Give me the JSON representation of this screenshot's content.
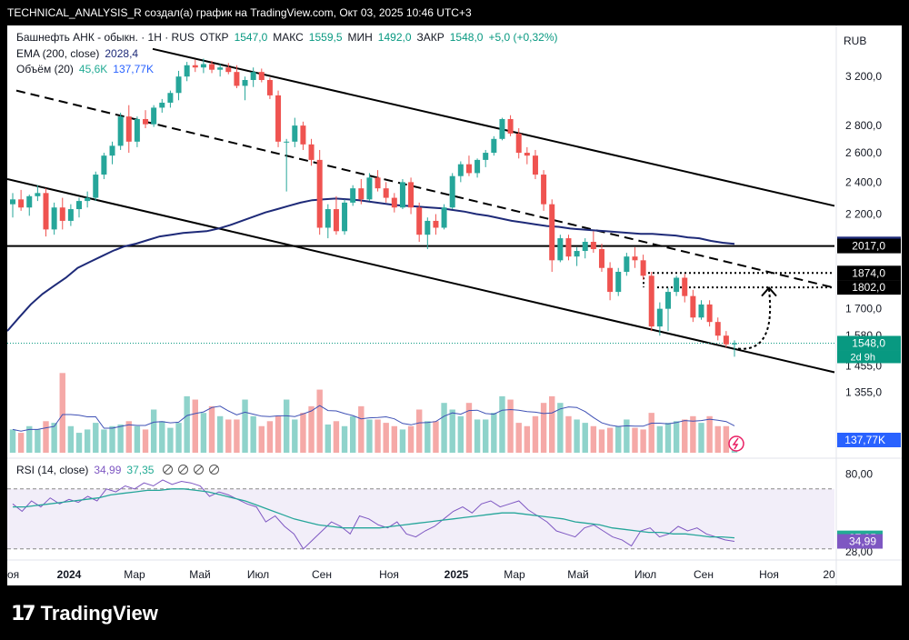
{
  "header": {
    "title": "TECHNICAL_ANALYSIS_R создал(а) график на TradingView.com, Окт 03, 2025 10:46 UTC+3"
  },
  "legend": {
    "symbol": "Башнефть АНК - обыкн. · 1Н · RUS",
    "open_label": "ОТКР",
    "open_value": "1547,0",
    "high_label": "МАКС",
    "high_value": "1559,5",
    "low_label": "МИН",
    "low_value": "1492,0",
    "close_label": "ЗАКР",
    "close_value": "1548,0",
    "change": "+5,0 (+0,32%)",
    "ema_label": "EMA (200, close)",
    "ema_value": "2028,4",
    "volume_label": "Объём (20)",
    "volume_value": "45,6K",
    "volume_ma_value": "137,77K",
    "rsi_label": "RSI (14, close)",
    "rsi_value": "34,99",
    "rsi_ma_value": "37,35"
  },
  "currency": "RUB",
  "logo": {
    "text": "TradingView"
  },
  "price_axis": {
    "ticks": [
      {
        "label": "3 200,0",
        "value": 3200
      },
      {
        "label": "2 800,0",
        "value": 2800
      },
      {
        "label": "2 600,0",
        "value": 2600
      },
      {
        "label": "2 400,0",
        "value": 2400
      },
      {
        "label": "2 200,0",
        "value": 2200
      },
      {
        "label": "1 700,0",
        "value": 1700
      },
      {
        "label": "1 580,0",
        "value": 1580
      },
      {
        "label": "1 455,0",
        "value": 1455
      },
      {
        "label": "1 355,0",
        "value": 1355
      }
    ],
    "badges": [
      {
        "label": "2028,4",
        "value": 2028.4,
        "color": "#1e2a78"
      },
      {
        "label": "2017,0",
        "value": 2017,
        "color": "#000000"
      },
      {
        "label": "1874,0",
        "value": 1874,
        "color": "#000000"
      },
      {
        "label": "1802,0",
        "value": 1802,
        "color": "#000000"
      },
      {
        "label": "1548,0",
        "value": 1548,
        "color": "#089981"
      }
    ],
    "countdown": "2d 9h",
    "volume_badge": "137,77K",
    "log_scale": true,
    "range": [
      1300,
      3500
    ]
  },
  "rsi_axis": {
    "ticks": [
      {
        "label": "80,00",
        "value": 80
      },
      {
        "label": "28,00",
        "value": 28
      }
    ],
    "badges": [
      {
        "label": "37,35",
        "value": 37.35,
        "color": "#22ab94"
      },
      {
        "label": "34,99",
        "value": 34.99,
        "color": "#7e57c2"
      }
    ],
    "band": [
      30,
      70
    ],
    "range": [
      25,
      82
    ]
  },
  "time_axis": {
    "labels": [
      "оя",
      "2024",
      "Мар",
      "Май",
      "Июл",
      "Сен",
      "Ноя",
      "2025",
      "Мар",
      "Май",
      "Июл",
      "Сен",
      "Ноя",
      "20"
    ]
  },
  "colors": {
    "up": "#26a69a",
    "down": "#ef5350",
    "ema": "#1e2a78",
    "rsi": "#7e57c2",
    "rsi_ma": "#26a69a"
  },
  "chart_data": {
    "type": "candlestick",
    "timeframe": "1H (weekly candles shown)",
    "x_start": "2023-11",
    "x_end": "2025-10",
    "ohlc": [
      [
        2260,
        2330,
        2180,
        2290
      ],
      [
        2290,
        2350,
        2220,
        2240
      ],
      [
        2240,
        2320,
        2190,
        2310
      ],
      [
        2310,
        2380,
        2280,
        2330
      ],
      [
        2330,
        2360,
        2070,
        2110
      ],
      [
        2110,
        2270,
        2080,
        2240
      ],
      [
        2240,
        2300,
        2110,
        2160
      ],
      [
        2160,
        2260,
        2130,
        2230
      ],
      [
        2230,
        2300,
        2180,
        2280
      ],
      [
        2280,
        2340,
        2240,
        2300
      ],
      [
        2300,
        2470,
        2280,
        2450
      ],
      [
        2450,
        2600,
        2420,
        2580
      ],
      [
        2580,
        2680,
        2520,
        2650
      ],
      [
        2650,
        2900,
        2620,
        2870
      ],
      [
        2870,
        2960,
        2600,
        2680
      ],
      [
        2680,
        2870,
        2640,
        2850
      ],
      [
        2850,
        2920,
        2780,
        2810
      ],
      [
        2810,
        2960,
        2790,
        2940
      ],
      [
        2940,
        3010,
        2900,
        2980
      ],
      [
        2980,
        3080,
        2940,
        3060
      ],
      [
        3060,
        3250,
        3000,
        3200
      ],
      [
        3200,
        3330,
        3160,
        3300
      ],
      [
        3300,
        3350,
        3240,
        3280
      ],
      [
        3280,
        3360,
        3230,
        3310
      ],
      [
        3310,
        3340,
        3230,
        3260
      ],
      [
        3260,
        3310,
        3200,
        3280
      ],
      [
        3280,
        3320,
        3220,
        3240
      ],
      [
        3240,
        3300,
        3100,
        3120
      ],
      [
        3120,
        3200,
        3000,
        3170
      ],
      [
        3170,
        3280,
        3110,
        3240
      ],
      [
        3240,
        3270,
        3150,
        3170
      ],
      [
        3170,
        3190,
        3010,
        3040
      ],
      [
        3040,
        3080,
        2640,
        2680
      ],
      [
        2680,
        2700,
        2340,
        2680
      ],
      [
        2680,
        2860,
        2640,
        2800
      ],
      [
        2800,
        2830,
        2620,
        2660
      ],
      [
        2660,
        2700,
        2510,
        2550
      ],
      [
        2550,
        2620,
        2080,
        2120
      ],
      [
        2120,
        2260,
        2060,
        2230
      ],
      [
        2230,
        2310,
        2080,
        2100
      ],
      [
        2100,
        2290,
        2080,
        2270
      ],
      [
        2270,
        2380,
        2250,
        2360
      ],
      [
        2360,
        2420,
        2260,
        2290
      ],
      [
        2290,
        2460,
        2280,
        2430
      ],
      [
        2430,
        2480,
        2340,
        2360
      ],
      [
        2360,
        2400,
        2270,
        2300
      ],
      [
        2300,
        2330,
        2210,
        2240
      ],
      [
        2240,
        2420,
        2230,
        2400
      ],
      [
        2400,
        2430,
        2200,
        2240
      ],
      [
        2240,
        2270,
        2040,
        2080
      ],
      [
        2080,
        2180,
        2000,
        2160
      ],
      [
        2160,
        2200,
        2080,
        2120
      ],
      [
        2120,
        2260,
        2110,
        2240
      ],
      [
        2240,
        2460,
        2230,
        2440
      ],
      [
        2440,
        2540,
        2400,
        2520
      ],
      [
        2520,
        2580,
        2440,
        2460
      ],
      [
        2460,
        2560,
        2430,
        2550
      ],
      [
        2550,
        2620,
        2500,
        2600
      ],
      [
        2600,
        2720,
        2580,
        2700
      ],
      [
        2700,
        2860,
        2690,
        2850
      ],
      [
        2850,
        2880,
        2720,
        2740
      ],
      [
        2740,
        2780,
        2560,
        2600
      ],
      [
        2600,
        2640,
        2520,
        2580
      ],
      [
        2580,
        2620,
        2420,
        2450
      ],
      [
        2450,
        2480,
        2220,
        2260
      ],
      [
        2260,
        2290,
        1880,
        1940
      ],
      [
        1940,
        2080,
        1930,
        2060
      ],
      [
        2060,
        2080,
        1940,
        1960
      ],
      [
        1960,
        2010,
        1910,
        1990
      ],
      [
        1990,
        2060,
        1950,
        2040
      ],
      [
        2040,
        2100,
        1980,
        2000
      ],
      [
        2000,
        2030,
        1880,
        1900
      ],
      [
        1900,
        1930,
        1740,
        1780
      ],
      [
        1780,
        1900,
        1760,
        1880
      ],
      [
        1880,
        1980,
        1860,
        1960
      ],
      [
        1960,
        2010,
        1900,
        1940
      ],
      [
        1940,
        1970,
        1840,
        1860
      ],
      [
        1860,
        1880,
        1600,
        1620
      ],
      [
        1620,
        1730,
        1580,
        1700
      ],
      [
        1700,
        1800,
        1600,
        1780
      ],
      [
        1780,
        1860,
        1760,
        1850
      ],
      [
        1850,
        1870,
        1730,
        1760
      ],
      [
        1760,
        1790,
        1640,
        1660
      ],
      [
        1660,
        1740,
        1650,
        1720
      ],
      [
        1720,
        1740,
        1620,
        1640
      ],
      [
        1640,
        1660,
        1560,
        1580
      ],
      [
        1580,
        1600,
        1530,
        1543
      ],
      [
        1543,
        1560,
        1492,
        1548
      ]
    ],
    "volume_k": [
      70,
      60,
      80,
      70,
      95,
      90,
      240,
      80,
      60,
      70,
      90,
      70,
      80,
      85,
      95,
      80,
      70,
      130,
      95,
      75,
      90,
      170,
      160,
      120,
      140,
      110,
      100,
      100,
      160,
      110,
      80,
      95,
      110,
      160,
      100,
      120,
      140,
      190,
      85,
      95,
      80,
      110,
      140,
      100,
      100,
      90,
      80,
      70,
      80,
      130,
      95,
      95,
      150,
      130,
      110,
      150,
      100,
      100,
      120,
      170,
      160,
      90,
      80,
      110,
      150,
      170,
      150,
      110,
      100,
      90,
      80,
      70,
      75,
      80,
      100,
      75,
      70,
      120,
      80,
      90,
      95,
      100,
      110,
      90,
      110,
      80,
      80,
      45.6
    ],
    "ema200": [
      1600,
      1660,
      1720,
      1770,
      1810,
      1850,
      1900,
      1930,
      1960,
      1990,
      2015,
      2030,
      2050,
      2070,
      2080,
      2090,
      2095,
      2100,
      2115,
      2135,
      2160,
      2185,
      2210,
      2230,
      2250,
      2270,
      2285,
      2290,
      2295,
      2290,
      2285,
      2275,
      2265,
      2255,
      2250,
      2245,
      2240,
      2235,
      2225,
      2215,
      2200,
      2190,
      2175,
      2160,
      2150,
      2140,
      2130,
      2125,
      2115,
      2110,
      2105,
      2100,
      2095,
      2090,
      2085,
      2085,
      2080,
      2075,
      2065,
      2060,
      2045,
      2035,
      2028.4
    ],
    "rsi": [
      60,
      55,
      62,
      58,
      64,
      60,
      63,
      61,
      65,
      62,
      70,
      68,
      72,
      70,
      74,
      72,
      76,
      73,
      75,
      74,
      72,
      65,
      68,
      66,
      63,
      60,
      58,
      48,
      52,
      45,
      40,
      30,
      36,
      42,
      48,
      45,
      40,
      52,
      50,
      46,
      44,
      48,
      40,
      38,
      42,
      45,
      50,
      55,
      58,
      54,
      60,
      62,
      58,
      60,
      62,
      56,
      52,
      48,
      42,
      40,
      38,
      44,
      46,
      42,
      38,
      36,
      32,
      42,
      44,
      38,
      40,
      45,
      42,
      44,
      40,
      38,
      36,
      34.99
    ],
    "rsi_ma": [
      58,
      58,
      59,
      60,
      61,
      62,
      63,
      64,
      66,
      67,
      68,
      69,
      69,
      70,
      70,
      69,
      68,
      66,
      64,
      62,
      59,
      56,
      53,
      50,
      48,
      46,
      45,
      44,
      44,
      44,
      44,
      45,
      46,
      47,
      48,
      49,
      50,
      51,
      52,
      53,
      54,
      54,
      53,
      52,
      51,
      50,
      48,
      47,
      46,
      44,
      43,
      42,
      41,
      41,
      40,
      40,
      39,
      38,
      38,
      37.35
    ],
    "levels": [
      2017,
      1874,
      1802
    ],
    "annotations": {
      "current_price": 1548,
      "ema_current": 2028.4,
      "volume_ma": "137,77K"
    }
  }
}
